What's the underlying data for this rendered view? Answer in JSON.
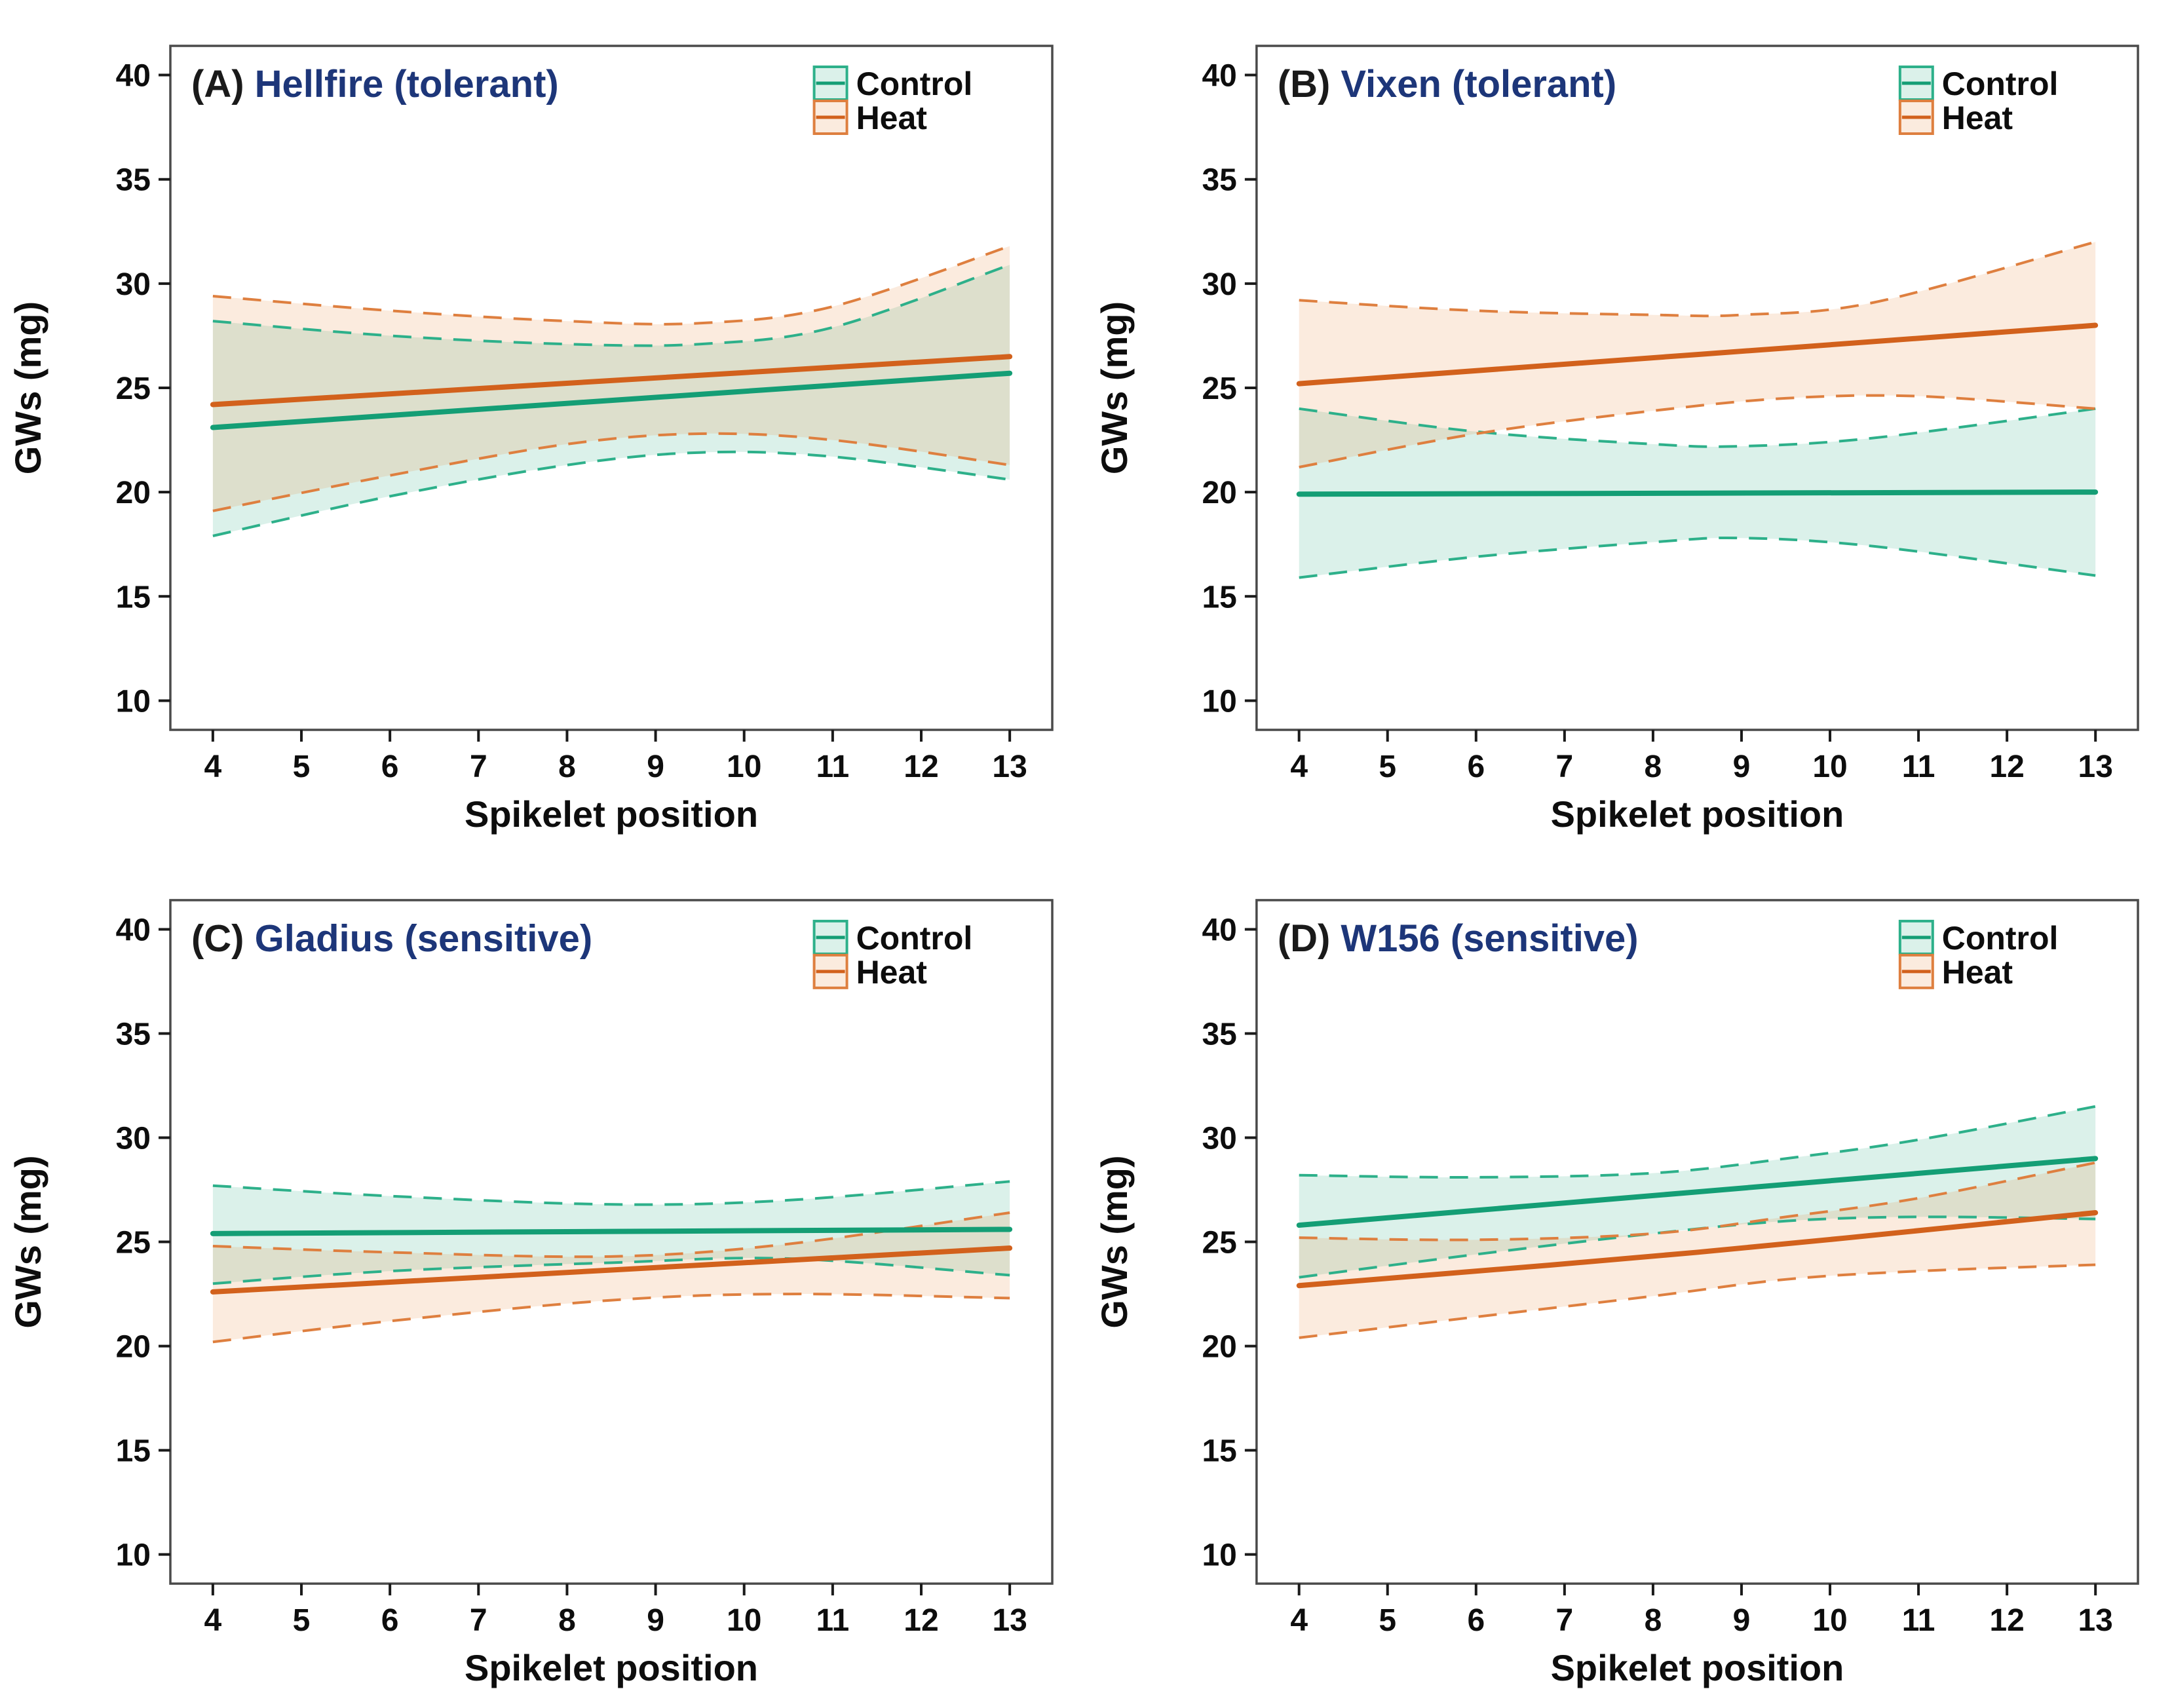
{
  "figure": {
    "ylabel": "GWs (mg)",
    "xlabel": "Spikelet position",
    "colors": {
      "panel_letter": "#1a1a1a",
      "panel_title": "#1d3679",
      "axis_text": "#0d0d0d",
      "frame": "#4a4a4a",
      "tick": "#1a1a1a"
    },
    "legend": {
      "control_label": "Control",
      "heat_label": "Heat"
    }
  },
  "chart_data": [
    {
      "type": "line",
      "panel_letter": "(A)",
      "title": "Hellfire (tolerant)",
      "xlabel": "Spikelet position",
      "ylabel": "GWs (mg)",
      "xlim": [
        3.52,
        13.48
      ],
      "ylim": [
        8.6,
        41.4
      ],
      "xticks": [
        4,
        5,
        6,
        7,
        8,
        9,
        10,
        11,
        12,
        13
      ],
      "yticks": [
        10,
        15,
        20,
        25,
        30,
        35,
        40
      ],
      "grid": false,
      "legend_position": "top-right-inside",
      "series": [
        {
          "name": "Control",
          "line_color": "#149e75",
          "edge_color": "#2db08a",
          "fill_color": "rgba(77,184,149,0.20)",
          "mean": [
            [
              4,
              23.1
            ],
            [
              13,
              25.7
            ]
          ],
          "band_upper": [
            [
              4,
              28.2
            ],
            [
              6,
              27.5
            ],
            [
              8,
              27.1
            ],
            [
              9.5,
              27.1
            ],
            [
              11,
              27.9
            ],
            [
              13,
              30.9
            ]
          ],
          "band_lower": [
            [
              4,
              17.9
            ],
            [
              6,
              19.8
            ],
            [
              8,
              21.3
            ],
            [
              9.5,
              21.9
            ],
            [
              11,
              21.7
            ],
            [
              13,
              20.6
            ]
          ]
        },
        {
          "name": "Heat",
          "line_color": "#d2611c",
          "edge_color": "#de7f3f",
          "fill_color": "rgba(233,134,62,0.17)",
          "mean": [
            [
              4,
              24.2
            ],
            [
              13,
              26.5
            ]
          ],
          "band_upper": [
            [
              4,
              29.4
            ],
            [
              6,
              28.7
            ],
            [
              8,
              28.2
            ],
            [
              9.5,
              28.1
            ],
            [
              11,
              28.9
            ],
            [
              13,
              31.8
            ]
          ],
          "band_lower": [
            [
              4,
              19.1
            ],
            [
              6,
              20.8
            ],
            [
              8,
              22.3
            ],
            [
              9.5,
              22.8
            ],
            [
              11,
              22.5
            ],
            [
              13,
              21.3
            ]
          ]
        }
      ]
    },
    {
      "type": "line",
      "panel_letter": "(B)",
      "title": "Vixen (tolerant)",
      "xlabel": "Spikelet position",
      "ylabel": "GWs (mg)",
      "xlim": [
        3.52,
        13.48
      ],
      "ylim": [
        8.6,
        41.4
      ],
      "xticks": [
        4,
        5,
        6,
        7,
        8,
        9,
        10,
        11,
        12,
        13
      ],
      "yticks": [
        10,
        15,
        20,
        25,
        30,
        35,
        40
      ],
      "grid": false,
      "legend_position": "top-right-inside",
      "series": [
        {
          "name": "Control",
          "line_color": "#149e75",
          "edge_color": "#2db08a",
          "fill_color": "rgba(77,184,149,0.20)",
          "mean": [
            [
              4,
              19.9
            ],
            [
              13,
              20.0
            ]
          ],
          "band_upper": [
            [
              4,
              24.0
            ],
            [
              6,
              22.9
            ],
            [
              8,
              22.3
            ],
            [
              9,
              22.2
            ],
            [
              10.5,
              22.6
            ],
            [
              13,
              24.0
            ]
          ],
          "band_lower": [
            [
              4,
              15.9
            ],
            [
              6,
              16.9
            ],
            [
              8,
              17.6
            ],
            [
              9,
              17.8
            ],
            [
              10.5,
              17.4
            ],
            [
              13,
              16.0
            ]
          ]
        },
        {
          "name": "Heat",
          "line_color": "#d2611c",
          "edge_color": "#de7f3f",
          "fill_color": "rgba(233,134,62,0.17)",
          "mean": [
            [
              4,
              25.2
            ],
            [
              13,
              28.0
            ]
          ],
          "band_upper": [
            [
              4,
              29.2
            ],
            [
              6,
              28.7
            ],
            [
              8,
              28.5
            ],
            [
              9,
              28.5
            ],
            [
              10.5,
              29.1
            ],
            [
              13,
              32.0
            ]
          ],
          "band_lower": [
            [
              4,
              21.2
            ],
            [
              6,
              22.8
            ],
            [
              8,
              23.9
            ],
            [
              9.5,
              24.5
            ],
            [
              11,
              24.6
            ],
            [
              13,
              24.0
            ]
          ]
        }
      ]
    },
    {
      "type": "line",
      "panel_letter": "(C)",
      "title": "Gladius (sensitive)",
      "xlabel": "Spikelet position",
      "ylabel": "GWs (mg)",
      "xlim": [
        3.52,
        13.48
      ],
      "ylim": [
        8.6,
        41.4
      ],
      "xticks": [
        4,
        5,
        6,
        7,
        8,
        9,
        10,
        11,
        12,
        13
      ],
      "yticks": [
        10,
        15,
        20,
        25,
        30,
        35,
        40
      ],
      "grid": false,
      "legend_position": "top-right-inside",
      "series": [
        {
          "name": "Control",
          "line_color": "#149e75",
          "edge_color": "#2db08a",
          "fill_color": "rgba(77,184,149,0.20)",
          "mean": [
            [
              4,
              25.4
            ],
            [
              13,
              25.6
            ]
          ],
          "band_upper": [
            [
              4,
              27.7
            ],
            [
              6,
              27.2
            ],
            [
              8.5,
              26.8
            ],
            [
              10.5,
              27.0
            ],
            [
              13,
              27.9
            ]
          ],
          "band_lower": [
            [
              4,
              23.0
            ],
            [
              6,
              23.6
            ],
            [
              8.5,
              24.0
            ],
            [
              10.5,
              24.2
            ],
            [
              13,
              23.4
            ]
          ]
        },
        {
          "name": "Heat",
          "line_color": "#d2611c",
          "edge_color": "#de7f3f",
          "fill_color": "rgba(233,134,62,0.17)",
          "mean": [
            [
              4,
              22.6
            ],
            [
              13,
              24.7
            ]
          ],
          "band_upper": [
            [
              4,
              24.8
            ],
            [
              6,
              24.5
            ],
            [
              8.5,
              24.3
            ],
            [
              10.5,
              24.9
            ],
            [
              13,
              26.4
            ]
          ],
          "band_lower": [
            [
              4,
              20.2
            ],
            [
              6,
              21.2
            ],
            [
              8.5,
              22.2
            ],
            [
              10.5,
              22.5
            ],
            [
              13,
              22.3
            ]
          ]
        }
      ]
    },
    {
      "type": "line",
      "panel_letter": "(D)",
      "title": "W156 (sensitive)",
      "xlabel": "Spikelet position",
      "ylabel": "GWs (mg)",
      "xlim": [
        3.52,
        13.48
      ],
      "ylim": [
        8.6,
        41.4
      ],
      "xticks": [
        4,
        5,
        6,
        7,
        8,
        9,
        10,
        11,
        12,
        13
      ],
      "yticks": [
        10,
        15,
        20,
        25,
        30,
        35,
        40
      ],
      "grid": false,
      "legend_position": "top-right-inside",
      "series": [
        {
          "name": "Control",
          "line_color": "#149e75",
          "edge_color": "#2db08a",
          "fill_color": "rgba(77,184,149,0.20)",
          "mean": [
            [
              4,
              25.8
            ],
            [
              8.5,
              27.4
            ],
            [
              13,
              29.0
            ]
          ],
          "band_upper": [
            [
              4,
              28.2
            ],
            [
              6,
              28.1
            ],
            [
              8,
              28.3
            ],
            [
              9.5,
              29.0
            ],
            [
              11,
              29.9
            ],
            [
              13,
              31.5
            ]
          ],
          "band_lower": [
            [
              4,
              23.3
            ],
            [
              6,
              24.4
            ],
            [
              8,
              25.4
            ],
            [
              9.5,
              26.0
            ],
            [
              11,
              26.2
            ],
            [
              13,
              26.1
            ]
          ]
        },
        {
          "name": "Heat",
          "line_color": "#d2611c",
          "edge_color": "#de7f3f",
          "fill_color": "rgba(233,134,62,0.17)",
          "mean": [
            [
              4,
              22.9
            ],
            [
              8.5,
              24.5
            ],
            [
              13,
              26.4
            ]
          ],
          "band_upper": [
            [
              4,
              25.2
            ],
            [
              6,
              25.1
            ],
            [
              8,
              25.4
            ],
            [
              9.5,
              26.2
            ],
            [
              11,
              27.1
            ],
            [
              13,
              28.8
            ]
          ],
          "band_lower": [
            [
              4,
              20.4
            ],
            [
              6,
              21.4
            ],
            [
              8,
              22.4
            ],
            [
              9.5,
              23.2
            ],
            [
              11,
              23.6
            ],
            [
              13,
              23.9
            ]
          ]
        }
      ]
    }
  ]
}
